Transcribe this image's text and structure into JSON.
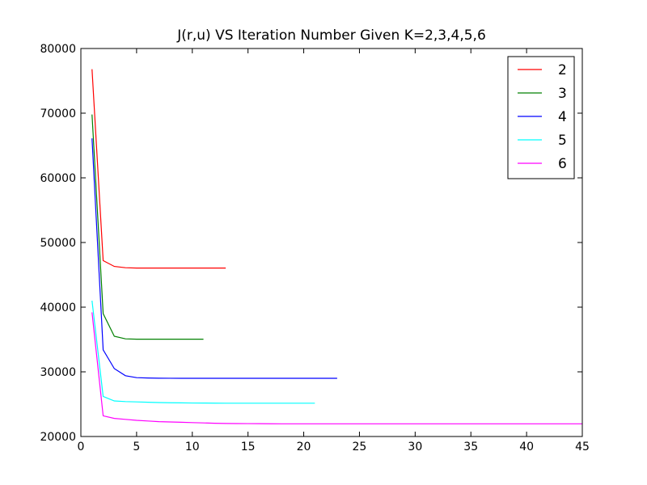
{
  "chart_data": {
    "type": "line",
    "title": "J(r,u) VS Iteration Number Given K=2,3,4,5,6",
    "xlabel": "",
    "ylabel": "",
    "xlim": [
      0,
      45
    ],
    "ylim": [
      20000,
      80000
    ],
    "xticks": [
      0,
      5,
      10,
      15,
      20,
      25,
      30,
      35,
      40,
      45
    ],
    "yticks": [
      20000,
      30000,
      40000,
      50000,
      60000,
      70000,
      80000
    ],
    "grid": false,
    "legend_position": "top-right",
    "series": [
      {
        "name": "2",
        "color": "#ff0000",
        "x": [
          1,
          2,
          3,
          4,
          5,
          6,
          7,
          8,
          9,
          10,
          11,
          12,
          13
        ],
        "y": [
          76800,
          47200,
          46300,
          46100,
          46050,
          46050,
          46050,
          46050,
          46050,
          46050,
          46050,
          46050,
          46050
        ]
      },
      {
        "name": "3",
        "color": "#008000",
        "x": [
          1,
          2,
          3,
          4,
          5,
          6,
          7,
          8,
          9,
          10,
          11
        ],
        "y": [
          69800,
          39000,
          35500,
          35100,
          35050,
          35050,
          35050,
          35050,
          35050,
          35050,
          35050
        ]
      },
      {
        "name": "4",
        "color": "#0000ff",
        "x": [
          1,
          2,
          3,
          4,
          5,
          6,
          7,
          8,
          9,
          10,
          11,
          12,
          13,
          14,
          15,
          16,
          17,
          18,
          19,
          20,
          21,
          22,
          23
        ],
        "y": [
          66100,
          33400,
          30500,
          29400,
          29100,
          29050,
          29020,
          29010,
          29000,
          29000,
          29000,
          29000,
          29000,
          29000,
          29000,
          29000,
          29000,
          29000,
          29000,
          29000,
          29000,
          29000,
          29000
        ]
      },
      {
        "name": "5",
        "color": "#00ffff",
        "x": [
          1,
          2,
          3,
          4,
          5,
          6,
          7,
          8,
          9,
          10,
          11,
          12,
          13,
          14,
          15,
          16,
          17,
          18,
          19,
          20,
          21
        ],
        "y": [
          41000,
          26200,
          25500,
          25400,
          25350,
          25300,
          25250,
          25220,
          25200,
          25180,
          25170,
          25160,
          25150,
          25150,
          25150,
          25150,
          25150,
          25150,
          25150,
          25150,
          25150
        ]
      },
      {
        "name": "6",
        "color": "#ff00ff",
        "x": [
          1,
          2,
          3,
          4,
          5,
          6,
          7,
          8,
          9,
          10,
          11,
          12,
          13,
          14,
          15,
          16,
          17,
          18,
          19,
          20,
          21,
          22,
          23,
          24,
          25,
          26,
          27,
          28,
          29,
          30,
          31,
          32,
          33,
          34,
          35,
          36,
          37,
          38,
          39,
          40,
          41,
          42,
          43,
          44,
          45
        ],
        "y": [
          39200,
          23200,
          22800,
          22650,
          22500,
          22400,
          22300,
          22250,
          22200,
          22150,
          22100,
          22050,
          22020,
          22000,
          21990,
          21980,
          21970,
          21960,
          21960,
          21960,
          21960,
          21960,
          21960,
          21960,
          21960,
          21960,
          21960,
          21960,
          21960,
          21960,
          21960,
          21960,
          21960,
          21960,
          21960,
          21960,
          21960,
          21960,
          21960,
          21960,
          21960,
          21960,
          21960,
          21960,
          21960
        ]
      }
    ]
  }
}
